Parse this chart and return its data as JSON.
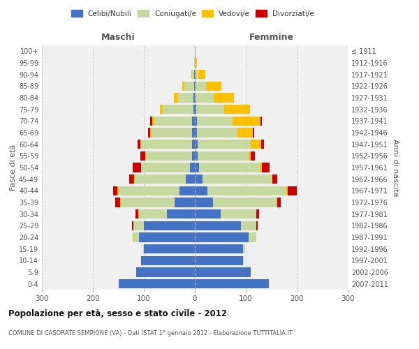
{
  "age_groups": [
    "0-4",
    "5-9",
    "10-14",
    "15-19",
    "20-24",
    "25-29",
    "30-34",
    "35-39",
    "40-44",
    "45-49",
    "50-54",
    "55-59",
    "60-64",
    "65-69",
    "70-74",
    "75-79",
    "80-84",
    "85-89",
    "90-94",
    "95-99",
    "100+"
  ],
  "birth_years": [
    "2007-2011",
    "2002-2006",
    "1997-2001",
    "1992-1996",
    "1987-1991",
    "1982-1986",
    "1977-1981",
    "1972-1976",
    "1967-1971",
    "1962-1966",
    "1957-1961",
    "1952-1956",
    "1947-1951",
    "1942-1946",
    "1937-1941",
    "1932-1936",
    "1927-1931",
    "1922-1926",
    "1917-1921",
    "1912-1916",
    "≤ 1911"
  ],
  "male": {
    "celibi": [
      150,
      115,
      105,
      100,
      110,
      100,
      55,
      40,
      30,
      18,
      10,
      6,
      5,
      5,
      5,
      3,
      3,
      2,
      1,
      0,
      0
    ],
    "coniugati": [
      0,
      0,
      1,
      2,
      10,
      20,
      55,
      105,
      120,
      100,
      95,
      90,
      100,
      80,
      75,
      60,
      30,
      18,
      4,
      1,
      0
    ],
    "vedovi": [
      0,
      0,
      0,
      0,
      2,
      1,
      1,
      1,
      2,
      1,
      1,
      1,
      2,
      3,
      4,
      5,
      8,
      5,
      2,
      1,
      0
    ],
    "divorziati": [
      0,
      0,
      0,
      0,
      0,
      2,
      5,
      10,
      8,
      10,
      16,
      10,
      5,
      4,
      3,
      0,
      0,
      0,
      0,
      0,
      0
    ]
  },
  "female": {
    "nubili": [
      145,
      110,
      95,
      95,
      105,
      90,
      50,
      35,
      25,
      15,
      8,
      5,
      5,
      4,
      4,
      3,
      2,
      2,
      1,
      0,
      0
    ],
    "coniugate": [
      0,
      0,
      1,
      3,
      15,
      30,
      70,
      125,
      155,
      135,
      120,
      100,
      105,
      80,
      70,
      55,
      35,
      20,
      5,
      1,
      0
    ],
    "vedove": [
      0,
      0,
      0,
      0,
      1,
      1,
      1,
      1,
      2,
      2,
      3,
      5,
      20,
      30,
      55,
      50,
      40,
      30,
      15,
      3,
      1
    ],
    "divorziate": [
      0,
      0,
      0,
      0,
      0,
      2,
      5,
      8,
      18,
      10,
      15,
      8,
      6,
      3,
      2,
      0,
      0,
      0,
      0,
      0,
      0
    ]
  },
  "colors": {
    "celibi": "#4472c4",
    "coniugati": "#c5d9a0",
    "vedovi": "#ffc000",
    "divorziati": "#cc0000"
  },
  "xlim": 300,
  "title": "Popolazione per età, sesso e stato civile - 2012",
  "subtitle": "COMUNE DI CASORATE SEMPIONE (VA) - Dati ISTAT 1° gennaio 2012 - Elaborazione TUTTITALIA.IT",
  "ylabel_left": "Fasce di età",
  "ylabel_right": "Anni di nascita",
  "xlabel_left": "Maschi",
  "xlabel_right": "Femmine",
  "bg_color": "#ffffff",
  "plot_bg_color": "#f0f0f0",
  "grid_color": "#cccccc"
}
